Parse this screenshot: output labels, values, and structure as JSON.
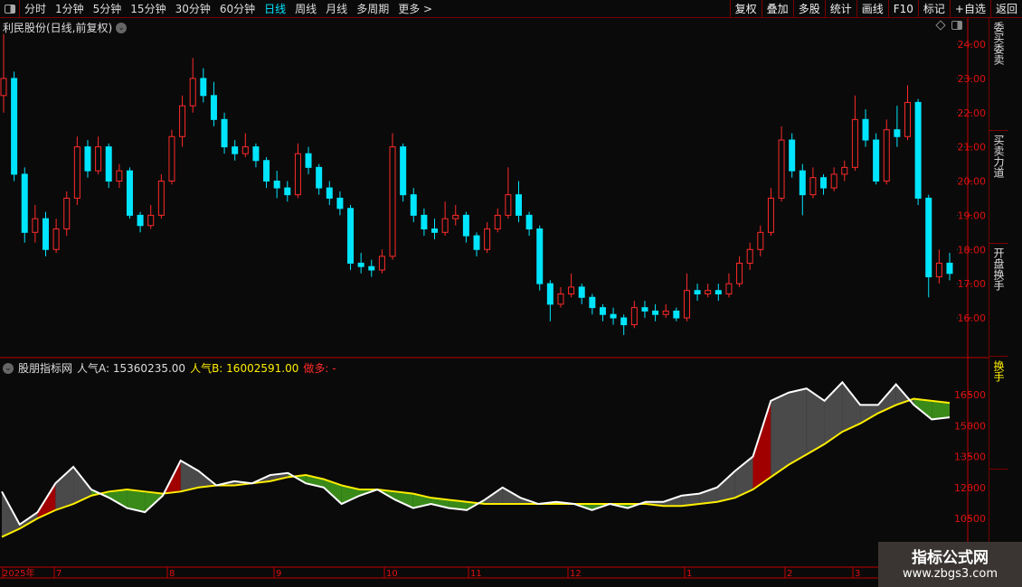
{
  "toolbar": {
    "periods": [
      "分时",
      "1分钟",
      "5分钟",
      "15分钟",
      "30分钟",
      "60分钟",
      "日线",
      "周线",
      "月线",
      "多周期",
      "更多 >"
    ],
    "active_period": "日线",
    "actions": [
      "复权",
      "叠加",
      "多股",
      "统计",
      "画线",
      "F10",
      "标记",
      "+自选",
      "返回"
    ]
  },
  "stock": {
    "title": "利民股份(日线,前复权)"
  },
  "indicator": {
    "name": "股朋指标网",
    "a_label": "人气A:",
    "a_value": "15360235.00",
    "b_label": "人气B:",
    "b_value": "16002591.00",
    "signal_label": "做多:",
    "signal_value": "-"
  },
  "colors": {
    "up": "#ff2a2a",
    "down": "#00e5ff",
    "line_a": "#ffffff",
    "line_b": "#ffee00",
    "fill_above": "#4a4a4a",
    "fill_below": "#3a8a1a",
    "fill_rise": "#a00000",
    "axis": "#c00000",
    "active": "#00e5ff"
  },
  "time_axis": [
    "2025年",
    "7",
    "8",
    "9",
    "10",
    "11",
    "12",
    "1",
    "2",
    "3"
  ],
  "right_panel": [
    "委买委卖",
    "买卖力道",
    "开盘换手",
    "换手"
  ],
  "watermark": {
    "line1": "指标公式网",
    "line2": "www.zbgs3.com"
  },
  "chart_data": [
    {
      "type": "candlestick",
      "yticks": [
        24,
        23,
        22,
        21,
        20,
        19,
        18,
        17,
        16
      ],
      "ylim": [
        15.7,
        24.3
      ],
      "ohlc": [
        [
          22.5,
          24.3,
          22.0,
          23.0
        ],
        [
          23.0,
          23.2,
          20.0,
          20.2
        ],
        [
          20.2,
          20.4,
          18.2,
          18.5
        ],
        [
          18.5,
          19.3,
          18.2,
          18.9
        ],
        [
          18.9,
          19.1,
          17.8,
          18.0
        ],
        [
          18.0,
          18.9,
          17.9,
          18.6
        ],
        [
          18.6,
          19.7,
          18.4,
          19.5
        ],
        [
          19.5,
          21.3,
          19.3,
          21.0
        ],
        [
          21.0,
          21.2,
          20.1,
          20.3
        ],
        [
          20.3,
          21.3,
          20.2,
          21.0
        ],
        [
          21.0,
          21.1,
          19.8,
          20.0
        ],
        [
          20.0,
          20.5,
          19.8,
          20.3
        ],
        [
          20.3,
          20.4,
          18.9,
          19.0
        ],
        [
          19.0,
          19.1,
          18.5,
          18.7
        ],
        [
          18.7,
          19.3,
          18.6,
          19.0
        ],
        [
          19.0,
          20.2,
          18.9,
          20.0
        ],
        [
          20.0,
          21.5,
          19.9,
          21.3
        ],
        [
          21.3,
          22.5,
          21.0,
          22.2
        ],
        [
          22.2,
          23.6,
          22.0,
          23.0
        ],
        [
          23.0,
          23.3,
          22.3,
          22.5
        ],
        [
          22.5,
          22.9,
          21.6,
          21.8
        ],
        [
          21.8,
          22.0,
          20.8,
          21.0
        ],
        [
          21.0,
          21.2,
          20.6,
          20.8
        ],
        [
          20.8,
          21.4,
          20.7,
          21.0
        ],
        [
          21.0,
          21.1,
          20.4,
          20.6
        ],
        [
          20.6,
          20.7,
          19.8,
          20.0
        ],
        [
          20.0,
          20.3,
          19.5,
          19.8
        ],
        [
          19.8,
          20.0,
          19.4,
          19.6
        ],
        [
          19.6,
          21.1,
          19.5,
          20.8
        ],
        [
          20.8,
          21.0,
          20.2,
          20.4
        ],
        [
          20.4,
          20.5,
          19.6,
          19.8
        ],
        [
          19.8,
          20.0,
          19.3,
          19.5
        ],
        [
          19.5,
          19.7,
          19.0,
          19.2
        ],
        [
          19.2,
          19.3,
          17.4,
          17.6
        ],
        [
          17.6,
          17.9,
          17.3,
          17.5
        ],
        [
          17.5,
          17.7,
          17.2,
          17.4
        ],
        [
          17.4,
          18.0,
          17.3,
          17.8
        ],
        [
          17.8,
          21.4,
          17.7,
          21.0
        ],
        [
          21.0,
          21.1,
          19.4,
          19.6
        ],
        [
          19.6,
          19.8,
          18.8,
          19.0
        ],
        [
          19.0,
          19.2,
          18.4,
          18.6
        ],
        [
          18.6,
          18.9,
          18.3,
          18.5
        ],
        [
          18.5,
          19.4,
          18.4,
          18.9
        ],
        [
          18.9,
          19.3,
          18.7,
          19.0
        ],
        [
          19.0,
          19.1,
          18.2,
          18.4
        ],
        [
          18.4,
          18.5,
          17.8,
          18.0
        ],
        [
          18.0,
          18.8,
          17.9,
          18.6
        ],
        [
          18.6,
          19.2,
          18.5,
          19.0
        ],
        [
          19.0,
          20.4,
          18.9,
          19.6
        ],
        [
          19.6,
          20.0,
          18.8,
          19.0
        ],
        [
          19.0,
          19.1,
          18.4,
          18.6
        ],
        [
          18.6,
          18.7,
          16.8,
          17.0
        ],
        [
          17.0,
          17.1,
          15.9,
          16.4
        ],
        [
          16.4,
          16.9,
          16.3,
          16.7
        ],
        [
          16.7,
          17.3,
          16.6,
          16.9
        ],
        [
          16.9,
          17.0,
          16.4,
          16.6
        ],
        [
          16.6,
          16.7,
          16.1,
          16.3
        ],
        [
          16.3,
          16.4,
          15.9,
          16.1
        ],
        [
          16.1,
          16.3,
          15.8,
          16.0
        ],
        [
          16.0,
          16.1,
          15.5,
          15.8
        ],
        [
          15.8,
          16.5,
          15.7,
          16.3
        ],
        [
          16.3,
          16.5,
          16.0,
          16.2
        ],
        [
          16.2,
          16.4,
          15.9,
          16.1
        ],
        [
          16.1,
          16.4,
          16.0,
          16.2
        ],
        [
          16.2,
          16.3,
          15.9,
          16.0
        ],
        [
          16.0,
          17.3,
          15.9,
          16.8
        ],
        [
          16.8,
          17.0,
          16.5,
          16.7
        ],
        [
          16.7,
          17.0,
          16.6,
          16.8
        ],
        [
          16.8,
          17.0,
          16.5,
          16.7
        ],
        [
          16.7,
          17.3,
          16.6,
          17.0
        ],
        [
          17.0,
          17.8,
          16.9,
          17.6
        ],
        [
          17.6,
          18.2,
          17.4,
          18.0
        ],
        [
          18.0,
          18.7,
          17.8,
          18.5
        ],
        [
          18.5,
          19.8,
          18.4,
          19.5
        ],
        [
          19.5,
          21.6,
          19.4,
          21.2
        ],
        [
          21.2,
          21.4,
          20.1,
          20.3
        ],
        [
          20.3,
          20.5,
          19.0,
          19.6
        ],
        [
          19.6,
          20.4,
          19.5,
          20.1
        ],
        [
          20.1,
          20.2,
          19.6,
          19.8
        ],
        [
          19.8,
          20.4,
          19.7,
          20.2
        ],
        [
          20.2,
          20.6,
          20.0,
          20.4
        ],
        [
          20.4,
          22.5,
          20.3,
          21.8
        ],
        [
          21.8,
          22.1,
          21.0,
          21.2
        ],
        [
          21.2,
          21.4,
          19.9,
          20.0
        ],
        [
          20.0,
          21.8,
          19.9,
          21.5
        ],
        [
          21.5,
          22.2,
          21.0,
          21.3
        ],
        [
          21.3,
          22.8,
          21.2,
          22.3
        ],
        [
          22.3,
          22.4,
          19.3,
          19.5
        ],
        [
          19.5,
          19.6,
          16.6,
          17.2
        ],
        [
          17.2,
          18.0,
          17.0,
          17.6
        ],
        [
          17.6,
          17.9,
          17.1,
          17.3
        ]
      ]
    },
    {
      "type": "area",
      "yticks": [
        16500,
        15000,
        13500,
        12000,
        10500
      ],
      "ylim": [
        9200,
        17800
      ],
      "series": [
        {
          "name": "人气A",
          "values": [
            11800,
            10200,
            10800,
            12200,
            13000,
            11900,
            11500,
            11000,
            10800,
            11600,
            13300,
            12800,
            12100,
            12300,
            12200,
            12600,
            12700,
            12200,
            12000,
            11200,
            11600,
            11900,
            11400,
            11000,
            11200,
            11000,
            10900,
            11400,
            12000,
            11500,
            11200,
            11300,
            11200,
            10900,
            11200,
            11000,
            11300,
            11300,
            11600,
            11700,
            12000,
            12800,
            13500,
            16200,
            16600,
            16800,
            16200,
            17100,
            16000,
            16000,
            17000,
            16000,
            15300,
            15400
          ]
        },
        {
          "name": "人气B",
          "values": [
            9600,
            10000,
            10500,
            10900,
            11200,
            11600,
            11800,
            11900,
            11800,
            11700,
            11800,
            12000,
            12100,
            12100,
            12200,
            12300,
            12500,
            12600,
            12400,
            12100,
            11900,
            11900,
            11800,
            11700,
            11500,
            11400,
            11300,
            11200,
            11200,
            11200,
            11200,
            11200,
            11200,
            11200,
            11200,
            11200,
            11200,
            11100,
            11100,
            11200,
            11300,
            11500,
            11900,
            12500,
            13100,
            13600,
            14100,
            14700,
            15100,
            15600,
            16000,
            16300,
            16200,
            16100
          ]
        }
      ]
    }
  ]
}
